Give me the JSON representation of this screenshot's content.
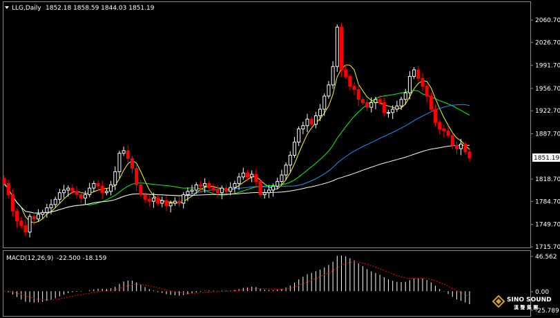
{
  "header": {
    "symbol": "LLG,Daily",
    "ohlc": "1852.18 1858.59 1844.03 1851.19"
  },
  "macd_header": {
    "label": "MACD(12,26,9)",
    "values": "-22.500 -18.159"
  },
  "price_axis": {
    "ticks": [
      "2060.70",
      "2026.70",
      "1991.70",
      "1956.70",
      "1922.70",
      "1887.70",
      "1851.19",
      "1818.70",
      "1784.70",
      "1749.70",
      "1715.70"
    ],
    "current_price": "1851.19"
  },
  "macd_axis": {
    "ticks": [
      "46.562",
      "0.00",
      "-25.789"
    ]
  },
  "logo": {
    "text_en": "SINO SOUND",
    "text_cn": "漢 聲 集 團"
  },
  "colors": {
    "background": "#000000",
    "bull": "#ffffff",
    "bear": "#ff0000",
    "ma_fast": "#ffff00",
    "ma_mid": "#00ff00",
    "ma_slow": "#1e90ff",
    "ma_long": "#ffffe0",
    "signal": "#ff0000",
    "histogram": "#ffffff"
  },
  "chart_data": {
    "type": "candlestick",
    "timeframe": "Daily",
    "y_range": [
      1715.7,
      2060.7
    ],
    "closes": [
      1812,
      1795,
      1770,
      1755,
      1748,
      1738,
      1762,
      1758,
      1765,
      1768,
      1775,
      1780,
      1788,
      1798,
      1802,
      1805,
      1800,
      1795,
      1790,
      1795,
      1805,
      1812,
      1808,
      1798,
      1800,
      1810,
      1830,
      1858,
      1862,
      1850,
      1835,
      1810,
      1795,
      1788,
      1785,
      1790,
      1782,
      1786,
      1778,
      1782,
      1785,
      1782,
      1795,
      1800,
      1802,
      1810,
      1808,
      1812,
      1806,
      1802,
      1798,
      1805,
      1800,
      1806,
      1812,
      1822,
      1828,
      1822,
      1826,
      1815,
      1795,
      1798,
      1802,
      1808,
      1815,
      1825,
      1840,
      1855,
      1875,
      1895,
      1900,
      1910,
      1902,
      1915,
      1925,
      1945,
      1962,
      1990,
      2050,
      1985,
      1975,
      1960,
      1955,
      1940,
      1935,
      1928,
      1935,
      1940,
      1935,
      1920,
      1920,
      1925,
      1930,
      1940,
      1950,
      1975,
      1985,
      1972,
      1960,
      1945,
      1925,
      1905,
      1895,
      1892,
      1885,
      1870,
      1865,
      1872,
      1860,
      1851
    ],
    "moving_averages": [
      "yellow",
      "green",
      "blue",
      "beige"
    ],
    "macd": {
      "params": "12,26,9",
      "histogram_range": [
        -25.789,
        46.562
      ]
    }
  }
}
